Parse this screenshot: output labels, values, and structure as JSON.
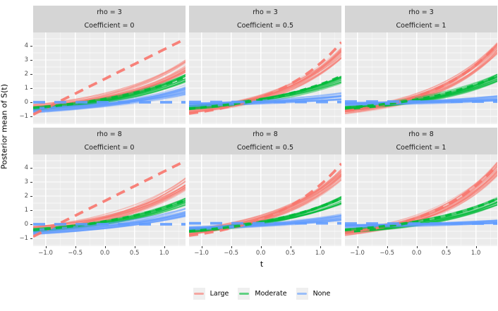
{
  "chart_data": {
    "type": "line",
    "description": "Faceted ggplot of posterior mean curves S(t) versus t, 2 rows (rho) x 3 columns (Coefficient), spaghetti lines per group with thick dashed truth lines",
    "x": {
      "title": "t",
      "tick_labels": [
        "−1.0",
        "−0.5",
        "0.0",
        "0.5",
        "1.0"
      ],
      "tick_values": [
        -1.0,
        -0.5,
        0.0,
        0.5,
        1.0
      ],
      "range": [
        -1.21,
        1.36
      ]
    },
    "y": {
      "title": "Posterior mean of S(t)",
      "tick_labels": [
        "4",
        "3",
        "2",
        "1",
        "0",
        "−1"
      ],
      "tick_values": [
        4,
        3,
        2,
        1,
        0,
        -1
      ],
      "range": [
        -1.55,
        4.95
      ]
    },
    "legend": [
      {
        "label": "Large",
        "color": "#F8766D"
      },
      {
        "label": "Moderate",
        "color": "#00BA38"
      },
      {
        "label": "None",
        "color": "#619CFF"
      }
    ],
    "panel_background": "#ebebeb",
    "strip_background": "#d5d5d5",
    "grid_color": "#ffffff",
    "facets": [
      {
        "strip": [
          "rho = 3",
          "Coefficient = 0"
        ],
        "series": [
          {
            "group": "Large",
            "spaghetti": {
              "n": 26,
              "start": -0.35,
              "start_sd": 0.22,
              "end": 2.55,
              "end_sd": 0.45,
              "k": 1.9
            },
            "truth": {
              "shape": "linear",
              "start": -0.87,
              "end": 4.5
            }
          },
          {
            "group": "Moderate",
            "spaghetti": {
              "n": 24,
              "start": -0.45,
              "start_sd": 0.15,
              "end": 1.7,
              "end_sd": 0.28,
              "k": 1.8
            },
            "truth": {
              "shape": "curve",
              "start": -0.4,
              "end": 1.8,
              "k": 1.6
            }
          },
          {
            "group": "None",
            "spaghetti": {
              "n": 24,
              "start": -0.55,
              "start_sd": 0.2,
              "end": 0.9,
              "end_sd": 0.4,
              "k": 1.6
            },
            "truth": {
              "shape": "flat",
              "value": 0.0
            }
          }
        ]
      },
      {
        "strip": [
          "rho = 3",
          "Coefficient = 0.5"
        ],
        "series": [
          {
            "group": "Large",
            "spaghetti": {
              "n": 26,
              "start": -0.6,
              "start_sd": 0.2,
              "end": 3.5,
              "end_sd": 0.4,
              "k": 2.2
            },
            "truth": {
              "shape": "curve",
              "start": -0.8,
              "end": 4.25,
              "k": 2.2
            }
          },
          {
            "group": "Moderate",
            "spaghetti": {
              "n": 24,
              "start": -0.38,
              "start_sd": 0.15,
              "end": 1.6,
              "end_sd": 0.27,
              "k": 1.8
            },
            "truth": {
              "shape": "curve",
              "start": -0.45,
              "end": 1.85,
              "k": 1.7
            }
          },
          {
            "group": "None",
            "spaghetti": {
              "n": 24,
              "start": -0.18,
              "start_sd": 0.13,
              "end": 0.42,
              "end_sd": 0.25,
              "k": 1.5
            },
            "truth": {
              "shape": "flat",
              "value": 0.02
            }
          }
        ]
      },
      {
        "strip": [
          "rho = 3",
          "Coefficient = 1"
        ],
        "series": [
          {
            "group": "Large",
            "spaghetti": {
              "n": 26,
              "start": -0.65,
              "start_sd": 0.2,
              "end": 3.8,
              "end_sd": 0.45,
              "k": 2.3
            },
            "truth": {
              "shape": "curve",
              "start": -0.62,
              "end": 4.1,
              "k": 2.3
            }
          },
          {
            "group": "Moderate",
            "spaghetti": {
              "n": 24,
              "start": -0.42,
              "start_sd": 0.14,
              "end": 1.72,
              "end_sd": 0.3,
              "k": 1.9
            },
            "truth": {
              "shape": "curve",
              "start": -0.4,
              "end": 1.85,
              "k": 1.8
            }
          },
          {
            "group": "None",
            "spaghetti": {
              "n": 24,
              "start": -0.12,
              "start_sd": 0.12,
              "end": 0.28,
              "end_sd": 0.2,
              "k": 1.4
            },
            "truth": {
              "shape": "flat",
              "value": 0.05
            }
          }
        ]
      },
      {
        "strip": [
          "rho = 8",
          "Coefficient = 0"
        ],
        "series": [
          {
            "group": "Large",
            "spaghetti": {
              "n": 26,
              "start": -0.35,
              "start_sd": 0.22,
              "end": 2.85,
              "end_sd": 0.45,
              "k": 2.0
            },
            "truth": {
              "shape": "linear",
              "start": -0.87,
              "end": 4.5
            }
          },
          {
            "group": "Moderate",
            "spaghetti": {
              "n": 24,
              "start": -0.45,
              "start_sd": 0.15,
              "end": 1.62,
              "end_sd": 0.28,
              "k": 1.8
            },
            "truth": {
              "shape": "curve",
              "start": -0.4,
              "end": 1.7,
              "k": 1.6
            }
          },
          {
            "group": "None",
            "spaghetti": {
              "n": 24,
              "start": -0.55,
              "start_sd": 0.2,
              "end": 0.8,
              "end_sd": 0.38,
              "k": 1.6
            },
            "truth": {
              "shape": "flat",
              "value": 0.0
            }
          }
        ]
      },
      {
        "strip": [
          "rho = 8",
          "Coefficient = 0.5"
        ],
        "series": [
          {
            "group": "Large",
            "spaghetti": {
              "n": 26,
              "start": -0.55,
              "start_sd": 0.2,
              "end": 3.55,
              "end_sd": 0.42,
              "k": 2.2
            },
            "truth": {
              "shape": "curve",
              "start": -0.8,
              "end": 4.3,
              "k": 2.2
            }
          },
          {
            "group": "Moderate",
            "spaghetti": {
              "n": 24,
              "start": -0.45,
              "start_sd": 0.15,
              "end": 1.7,
              "end_sd": 0.3,
              "k": 1.9
            },
            "truth": {
              "shape": "curve",
              "start": -0.5,
              "end": 1.85,
              "k": 1.7
            }
          },
          {
            "group": "None",
            "spaghetti": {
              "n": 24,
              "start": -0.28,
              "start_sd": 0.13,
              "end": 0.5,
              "end_sd": 0.25,
              "k": 1.5
            },
            "truth": {
              "shape": "flat",
              "value": 0.07
            }
          }
        ]
      },
      {
        "strip": [
          "rho = 8",
          "Coefficient = 1"
        ],
        "series": [
          {
            "group": "Large",
            "spaghetti": {
              "n": 26,
              "start": -0.6,
              "start_sd": 0.2,
              "end": 3.9,
              "end_sd": 0.5,
              "k": 2.3
            },
            "truth": {
              "shape": "curve",
              "start": -0.6,
              "end": 4.2,
              "k": 2.3
            }
          },
          {
            "group": "Moderate",
            "spaghetti": {
              "n": 24,
              "start": -0.45,
              "start_sd": 0.14,
              "end": 1.65,
              "end_sd": 0.3,
              "k": 1.9
            },
            "truth": {
              "shape": "curve",
              "start": -0.4,
              "end": 1.8,
              "k": 1.8
            }
          },
          {
            "group": "None",
            "spaghetti": {
              "n": 24,
              "start": -0.15,
              "start_sd": 0.12,
              "end": 0.15,
              "end_sd": 0.15,
              "k": 1.3
            },
            "truth": {
              "shape": "flat",
              "value": 0.05
            }
          }
        ]
      }
    ]
  }
}
